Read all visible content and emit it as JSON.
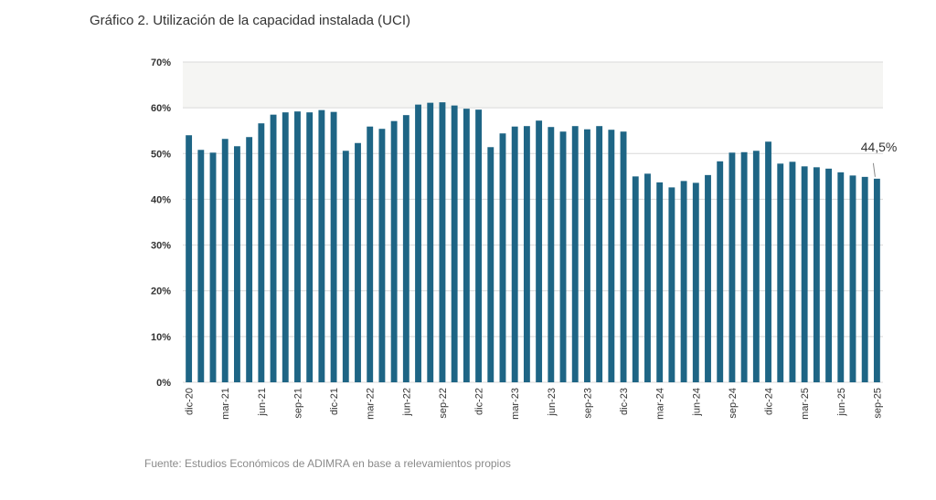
{
  "title": "Gráfico 2. Utilización de la capacidad instalada (UCI)",
  "source": "Fuente: Estudios Económicos de ADIMRA en base a relevamientos propios",
  "colors": {
    "bar": "#1e6585",
    "grid": "#d9d9d9",
    "band": "#f5f5f3",
    "text": "#333333"
  },
  "chart_data": {
    "type": "bar",
    "title": "Gráfico 2. Utilización de la capacidad instalada (UCI)",
    "ylabel": "",
    "xlabel": "",
    "ylim": [
      0,
      70
    ],
    "yticks": [
      0,
      10,
      20,
      30,
      40,
      50,
      60,
      70
    ],
    "ytick_labels": [
      "0%",
      "10%",
      "20%",
      "30%",
      "40%",
      "50%",
      "60%",
      "70%"
    ],
    "categories": [
      "dic-20",
      "ene-21",
      "feb-21",
      "mar-21",
      "abr-21",
      "may-21",
      "jun-21",
      "jul-21",
      "ago-21",
      "sep-21",
      "oct-21",
      "nov-21",
      "dic-21",
      "ene-22",
      "feb-22",
      "mar-22",
      "abr-22",
      "may-22",
      "jun-22",
      "jul-22",
      "ago-22",
      "sep-22",
      "oct-22",
      "nov-22",
      "dic-22",
      "ene-23",
      "feb-23",
      "mar-23",
      "abr-23",
      "may-23",
      "jun-23",
      "jul-23",
      "ago-23",
      "sep-23",
      "oct-23",
      "nov-23",
      "dic-23",
      "ene-24",
      "feb-24",
      "mar-24",
      "abr-24",
      "may-24",
      "jun-24",
      "jul-24",
      "ago-24",
      "sep-24",
      "oct-24",
      "nov-24",
      "dic-24",
      "ene-25",
      "feb-25",
      "mar-25",
      "abr-25",
      "may-25",
      "jun-25",
      "jul-25",
      "ago-25",
      "sep-25"
    ],
    "values": [
      54.0,
      50.8,
      50.2,
      53.2,
      51.6,
      53.6,
      56.6,
      58.5,
      59.0,
      59.2,
      59.0,
      59.5,
      59.1,
      50.6,
      52.3,
      55.9,
      55.4,
      57.1,
      58.4,
      60.7,
      61.1,
      61.2,
      60.5,
      59.8,
      59.6,
      51.4,
      54.4,
      55.9,
      56.0,
      57.2,
      55.8,
      54.8,
      56.0,
      55.3,
      56.0,
      55.2,
      54.8,
      45.0,
      45.6,
      43.7,
      42.6,
      44.0,
      43.6,
      45.3,
      48.3,
      50.2,
      50.3,
      50.6,
      52.6,
      47.8,
      48.2,
      47.2,
      47.0,
      46.7,
      45.9,
      45.2,
      44.9,
      44.5
    ],
    "xtick_labels": [
      "dic-20",
      "mar-21",
      "jun-21",
      "sep-21",
      "dic-21",
      "mar-22",
      "jun-22",
      "sep-22",
      "dic-22",
      "mar-23",
      "jun-23",
      "sep-23",
      "dic-23",
      "mar-24",
      "jun-24",
      "sep-24",
      "dic-24",
      "mar-25",
      "jun-25",
      "sep-25"
    ],
    "annotation": {
      "text": "44,5%",
      "category": "sep-25",
      "value": 44.5
    },
    "grid": true,
    "legend": "none"
  }
}
